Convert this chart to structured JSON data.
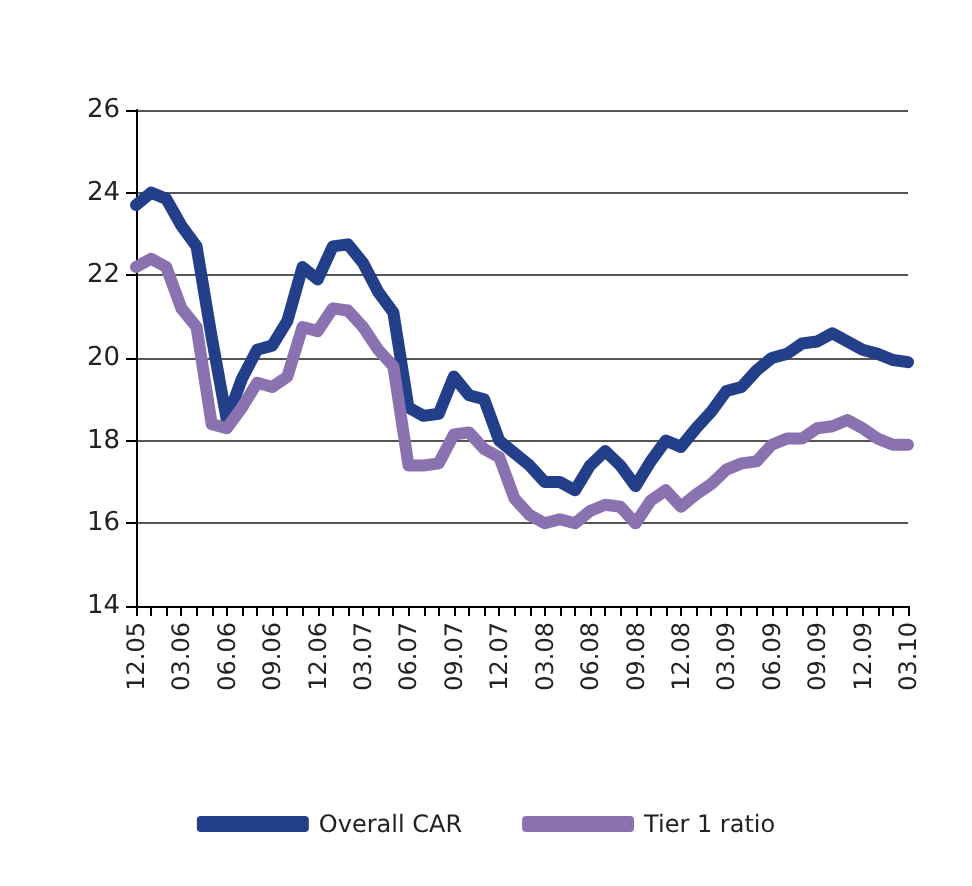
{
  "chart_data": {
    "type": "line",
    "categories": [
      "12.05",
      null,
      null,
      "03.06",
      null,
      null,
      "06.06",
      null,
      null,
      "09.06",
      null,
      null,
      "12.06",
      null,
      null,
      "03.07",
      null,
      null,
      "06.07",
      null,
      null,
      "09.07",
      null,
      null,
      "12.07",
      null,
      null,
      "03.08",
      null,
      null,
      "06.08",
      null,
      null,
      "09.08",
      null,
      null,
      "12.08",
      null,
      null,
      "03.09",
      null,
      null,
      "06.09",
      null,
      null,
      "09.09",
      null,
      null,
      "12.09",
      null,
      null,
      "03.10"
    ],
    "series": [
      {
        "name": "Overall CAR",
        "color": "#243f8a",
        "values": [
          23.7,
          24.0,
          23.85,
          23.2,
          22.7,
          20.5,
          18.5,
          19.5,
          20.2,
          20.3,
          20.9,
          22.2,
          21.9,
          22.7,
          22.75,
          22.3,
          21.6,
          21.1,
          18.8,
          18.6,
          18.65,
          19.55,
          19.1,
          19.0,
          18.0,
          17.7,
          17.4,
          17.0,
          17.0,
          16.8,
          17.4,
          17.75,
          17.4,
          16.9,
          17.5,
          18.0,
          17.85,
          18.3,
          18.7,
          19.2,
          19.3,
          19.7,
          20.0,
          20.1,
          20.35,
          20.4,
          20.6,
          20.4,
          20.2,
          20.1,
          19.95,
          19.9
        ]
      },
      {
        "name": "Tier 1 ratio",
        "color": "#8a72b0",
        "values": [
          22.2,
          22.4,
          22.2,
          21.2,
          20.75,
          18.4,
          18.3,
          18.8,
          19.4,
          19.3,
          19.55,
          20.75,
          20.65,
          21.2,
          21.15,
          20.75,
          20.2,
          19.8,
          17.4,
          17.4,
          17.45,
          18.15,
          18.2,
          17.8,
          17.6,
          16.6,
          16.2,
          16.0,
          16.1,
          16.0,
          16.3,
          16.45,
          16.4,
          16.0,
          16.55,
          16.8,
          16.4,
          16.7,
          16.95,
          17.3,
          17.45,
          17.5,
          17.9,
          18.05,
          18.05,
          18.3,
          18.35,
          18.5,
          18.3,
          18.05,
          17.9,
          17.9
        ]
      }
    ],
    "ylim": [
      14,
      26
    ],
    "yticks": [
      14,
      16,
      18,
      20,
      22,
      24,
      26
    ],
    "grid": "y",
    "legend": "bottom",
    "marker": "none",
    "line_style": "solid"
  }
}
